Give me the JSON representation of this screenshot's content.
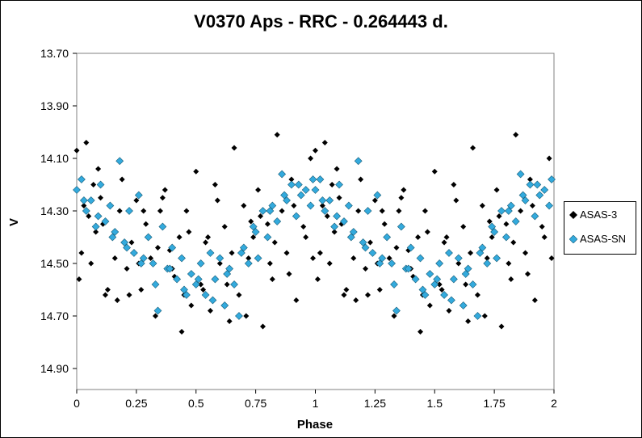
{
  "chart_data": {
    "type": "scatter",
    "title": "V0370 Aps - RRC - 0.264443 d.",
    "xlabel": "Phase",
    "ylabel": "V",
    "xlim": [
      0,
      2
    ],
    "ylim": [
      13.7,
      14.98
    ],
    "y_inverted": true,
    "xticks": [
      "0",
      "0.25",
      "0.5",
      "0.75",
      "1",
      "1.25",
      "1.5",
      "1.75",
      "2"
    ],
    "yticks": [
      "13.70",
      "13.90",
      "14.10",
      "14.30",
      "14.50",
      "14.70",
      "14.90"
    ],
    "grid": false,
    "legend_position": "right",
    "series": [
      {
        "name": "ASAS-3",
        "color": "#000000",
        "marker": "diamond",
        "x": [
          0.0,
          0.02,
          0.03,
          0.04,
          0.05,
          0.06,
          0.08,
          0.1,
          0.12,
          0.13,
          0.15,
          0.17,
          0.19,
          0.21,
          0.23,
          0.25,
          0.27,
          0.29,
          0.31,
          0.33,
          0.35,
          0.37,
          0.39,
          0.41,
          0.43,
          0.44,
          0.46,
          0.48,
          0.5,
          0.52,
          0.54,
          0.56,
          0.58,
          0.6,
          0.62,
          0.64,
          0.66,
          0.68,
          0.7,
          0.72,
          0.74,
          0.76,
          0.78,
          0.8,
          0.82,
          0.84,
          0.86,
          0.88,
          0.9,
          0.92,
          0.94,
          0.96,
          0.98,
          0.01,
          0.07,
          0.11,
          0.16,
          0.22,
          0.28,
          0.34,
          0.4,
          0.47,
          0.53,
          0.59,
          0.65,
          0.71,
          0.77,
          0.83,
          0.89,
          0.95,
          0.99,
          0.09,
          0.18,
          0.26,
          0.36,
          0.45,
          0.55,
          0.63,
          0.73,
          0.81,
          0.91
        ],
        "y": [
          14.07,
          14.46,
          14.28,
          14.04,
          14.32,
          14.5,
          14.38,
          14.25,
          14.62,
          14.6,
          14.4,
          14.64,
          14.18,
          14.52,
          14.42,
          14.26,
          14.6,
          14.35,
          14.48,
          14.7,
          14.3,
          14.22,
          14.45,
          14.55,
          14.4,
          14.76,
          14.3,
          14.66,
          14.15,
          14.58,
          14.42,
          14.68,
          14.2,
          14.5,
          14.36,
          14.72,
          14.06,
          14.62,
          14.28,
          14.48,
          14.4,
          14.22,
          14.74,
          14.35,
          14.56,
          14.01,
          14.3,
          14.46,
          14.18,
          14.64,
          14.24,
          14.4,
          14.1,
          14.56,
          14.2,
          14.35,
          14.48,
          14.62,
          14.3,
          14.44,
          14.52,
          14.38,
          14.6,
          14.26,
          14.46,
          14.7,
          14.32,
          14.42,
          14.54,
          14.36,
          14.48,
          14.14,
          14.3,
          14.5,
          14.25,
          14.62,
          14.4,
          14.58,
          14.34,
          14.5,
          14.28
        ]
      },
      {
        "name": "ASAS-SN",
        "color": "#33aadd",
        "marker": "diamond",
        "x": [
          0.0,
          0.02,
          0.04,
          0.06,
          0.08,
          0.1,
          0.12,
          0.14,
          0.16,
          0.18,
          0.2,
          0.22,
          0.24,
          0.26,
          0.28,
          0.3,
          0.32,
          0.34,
          0.36,
          0.38,
          0.4,
          0.42,
          0.44,
          0.46,
          0.48,
          0.5,
          0.52,
          0.54,
          0.56,
          0.58,
          0.6,
          0.62,
          0.64,
          0.66,
          0.68,
          0.7,
          0.72,
          0.74,
          0.76,
          0.78,
          0.8,
          0.82,
          0.84,
          0.86,
          0.88,
          0.9,
          0.92,
          0.94,
          0.96,
          0.98,
          0.03,
          0.09,
          0.15,
          0.21,
          0.27,
          0.33,
          0.39,
          0.45,
          0.51,
          0.57,
          0.63,
          0.69,
          0.75,
          0.81,
          0.87,
          0.93,
          0.99
        ],
        "y": [
          14.22,
          14.18,
          14.3,
          14.26,
          14.36,
          14.2,
          14.34,
          14.28,
          14.38,
          14.11,
          14.42,
          14.3,
          14.46,
          14.24,
          14.48,
          14.4,
          14.5,
          14.68,
          14.36,
          14.52,
          14.44,
          14.56,
          14.48,
          14.62,
          14.54,
          14.58,
          14.5,
          14.62,
          14.46,
          14.56,
          14.48,
          14.66,
          14.52,
          14.58,
          14.7,
          14.44,
          14.5,
          14.36,
          14.48,
          14.3,
          14.4,
          14.28,
          14.34,
          14.16,
          14.26,
          14.2,
          14.32,
          14.24,
          14.22,
          14.28,
          14.26,
          14.32,
          14.4,
          14.44,
          14.5,
          14.58,
          14.52,
          14.6,
          14.56,
          14.64,
          14.54,
          14.46,
          14.38,
          14.3,
          14.24,
          14.2,
          14.18
        ]
      }
    ]
  }
}
